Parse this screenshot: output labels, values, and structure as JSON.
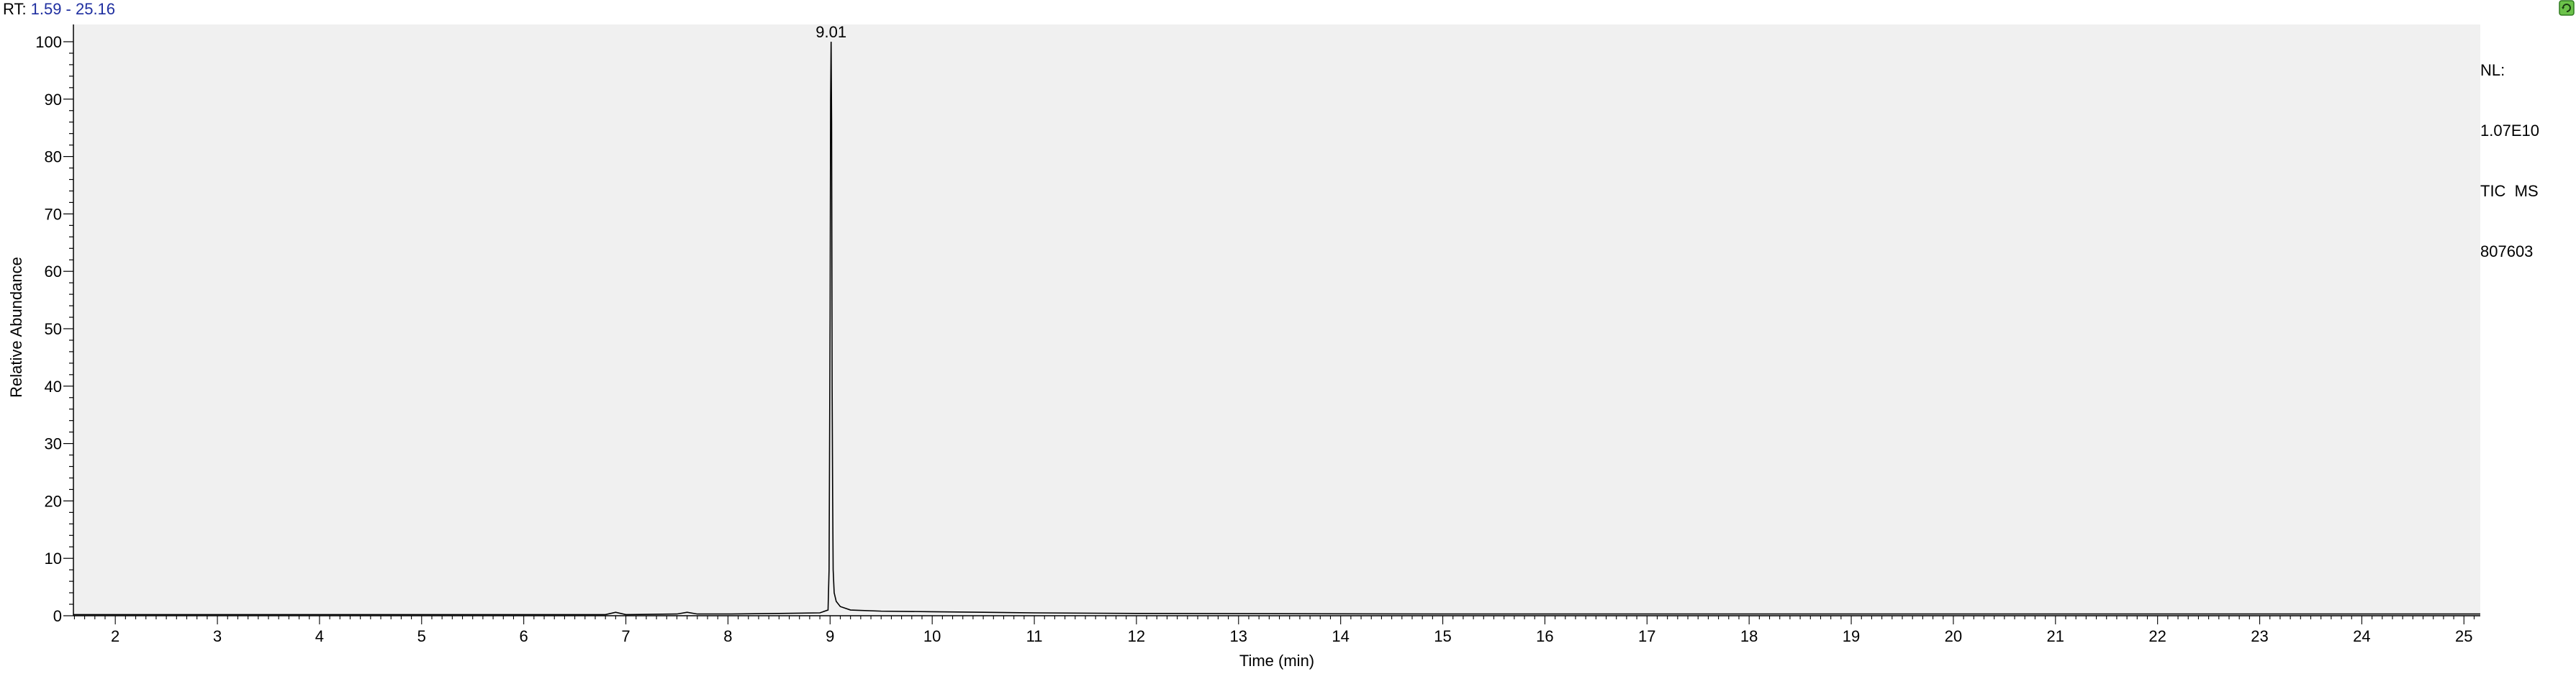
{
  "header": {
    "rt_label": "RT:",
    "rt_value": "1.59 - 25.16"
  },
  "info_panel": {
    "nl_label": "NL:",
    "nl_value": "1.07E10",
    "scan_filter": "TIC  MS",
    "file_id": "807603"
  },
  "status_icon": "refresh-icon",
  "colors": {
    "plot_background": "#f0f0f0",
    "trace": "#000000",
    "rt_value": "#1f2fa0",
    "status_icon": "#6cc24a"
  },
  "chart_data": {
    "type": "line",
    "title": "",
    "xlabel": "Time (min)",
    "ylabel": "Relative Abundance",
    "xlim": [
      1.59,
      25.16
    ],
    "ylim": [
      0,
      100
    ],
    "x_ticks": [
      2,
      3,
      4,
      5,
      6,
      7,
      8,
      9,
      10,
      11,
      12,
      13,
      14,
      15,
      16,
      17,
      18,
      19,
      20,
      21,
      22,
      23,
      24,
      25
    ],
    "x_tick_labels": [
      "2",
      "3",
      "4",
      "5",
      "6",
      "7",
      "8",
      "9",
      "10",
      "11",
      "12",
      "13",
      "14",
      "15",
      "16",
      "17",
      "18",
      "19",
      "20",
      "21",
      "22",
      "23",
      "24",
      "25"
    ],
    "y_ticks": [
      0,
      10,
      20,
      30,
      40,
      50,
      60,
      70,
      80,
      90,
      100
    ],
    "y_tick_labels": [
      "0",
      "10",
      "20",
      "30",
      "40",
      "50",
      "60",
      "70",
      "80",
      "90",
      "100"
    ],
    "grid": false,
    "series": [
      {
        "x": [
          1.59,
          3.0,
          5.0,
          6.8,
          6.9,
          7.0,
          7.5,
          7.6,
          7.7,
          8.0,
          8.5,
          8.9,
          8.98,
          8.99,
          9.0,
          9.005,
          9.01,
          9.015,
          9.02,
          9.025,
          9.03,
          9.04,
          9.06,
          9.1,
          9.2,
          9.5,
          10.0,
          10.5,
          11.0,
          12.0,
          15.0,
          20.0,
          25.16
        ],
        "y": [
          0.2,
          0.2,
          0.2,
          0.2,
          0.6,
          0.2,
          0.3,
          0.6,
          0.3,
          0.3,
          0.4,
          0.5,
          1.0,
          8.0,
          52.0,
          90.0,
          100.0,
          86.0,
          40.0,
          21.0,
          8.0,
          4.0,
          2.5,
          1.6,
          1.0,
          0.8,
          0.7,
          0.6,
          0.5,
          0.4,
          0.3,
          0.3,
          0.3
        ]
      }
    ],
    "annotations": [
      {
        "x": 9.01,
        "y": 100,
        "text": "9.01"
      }
    ]
  }
}
